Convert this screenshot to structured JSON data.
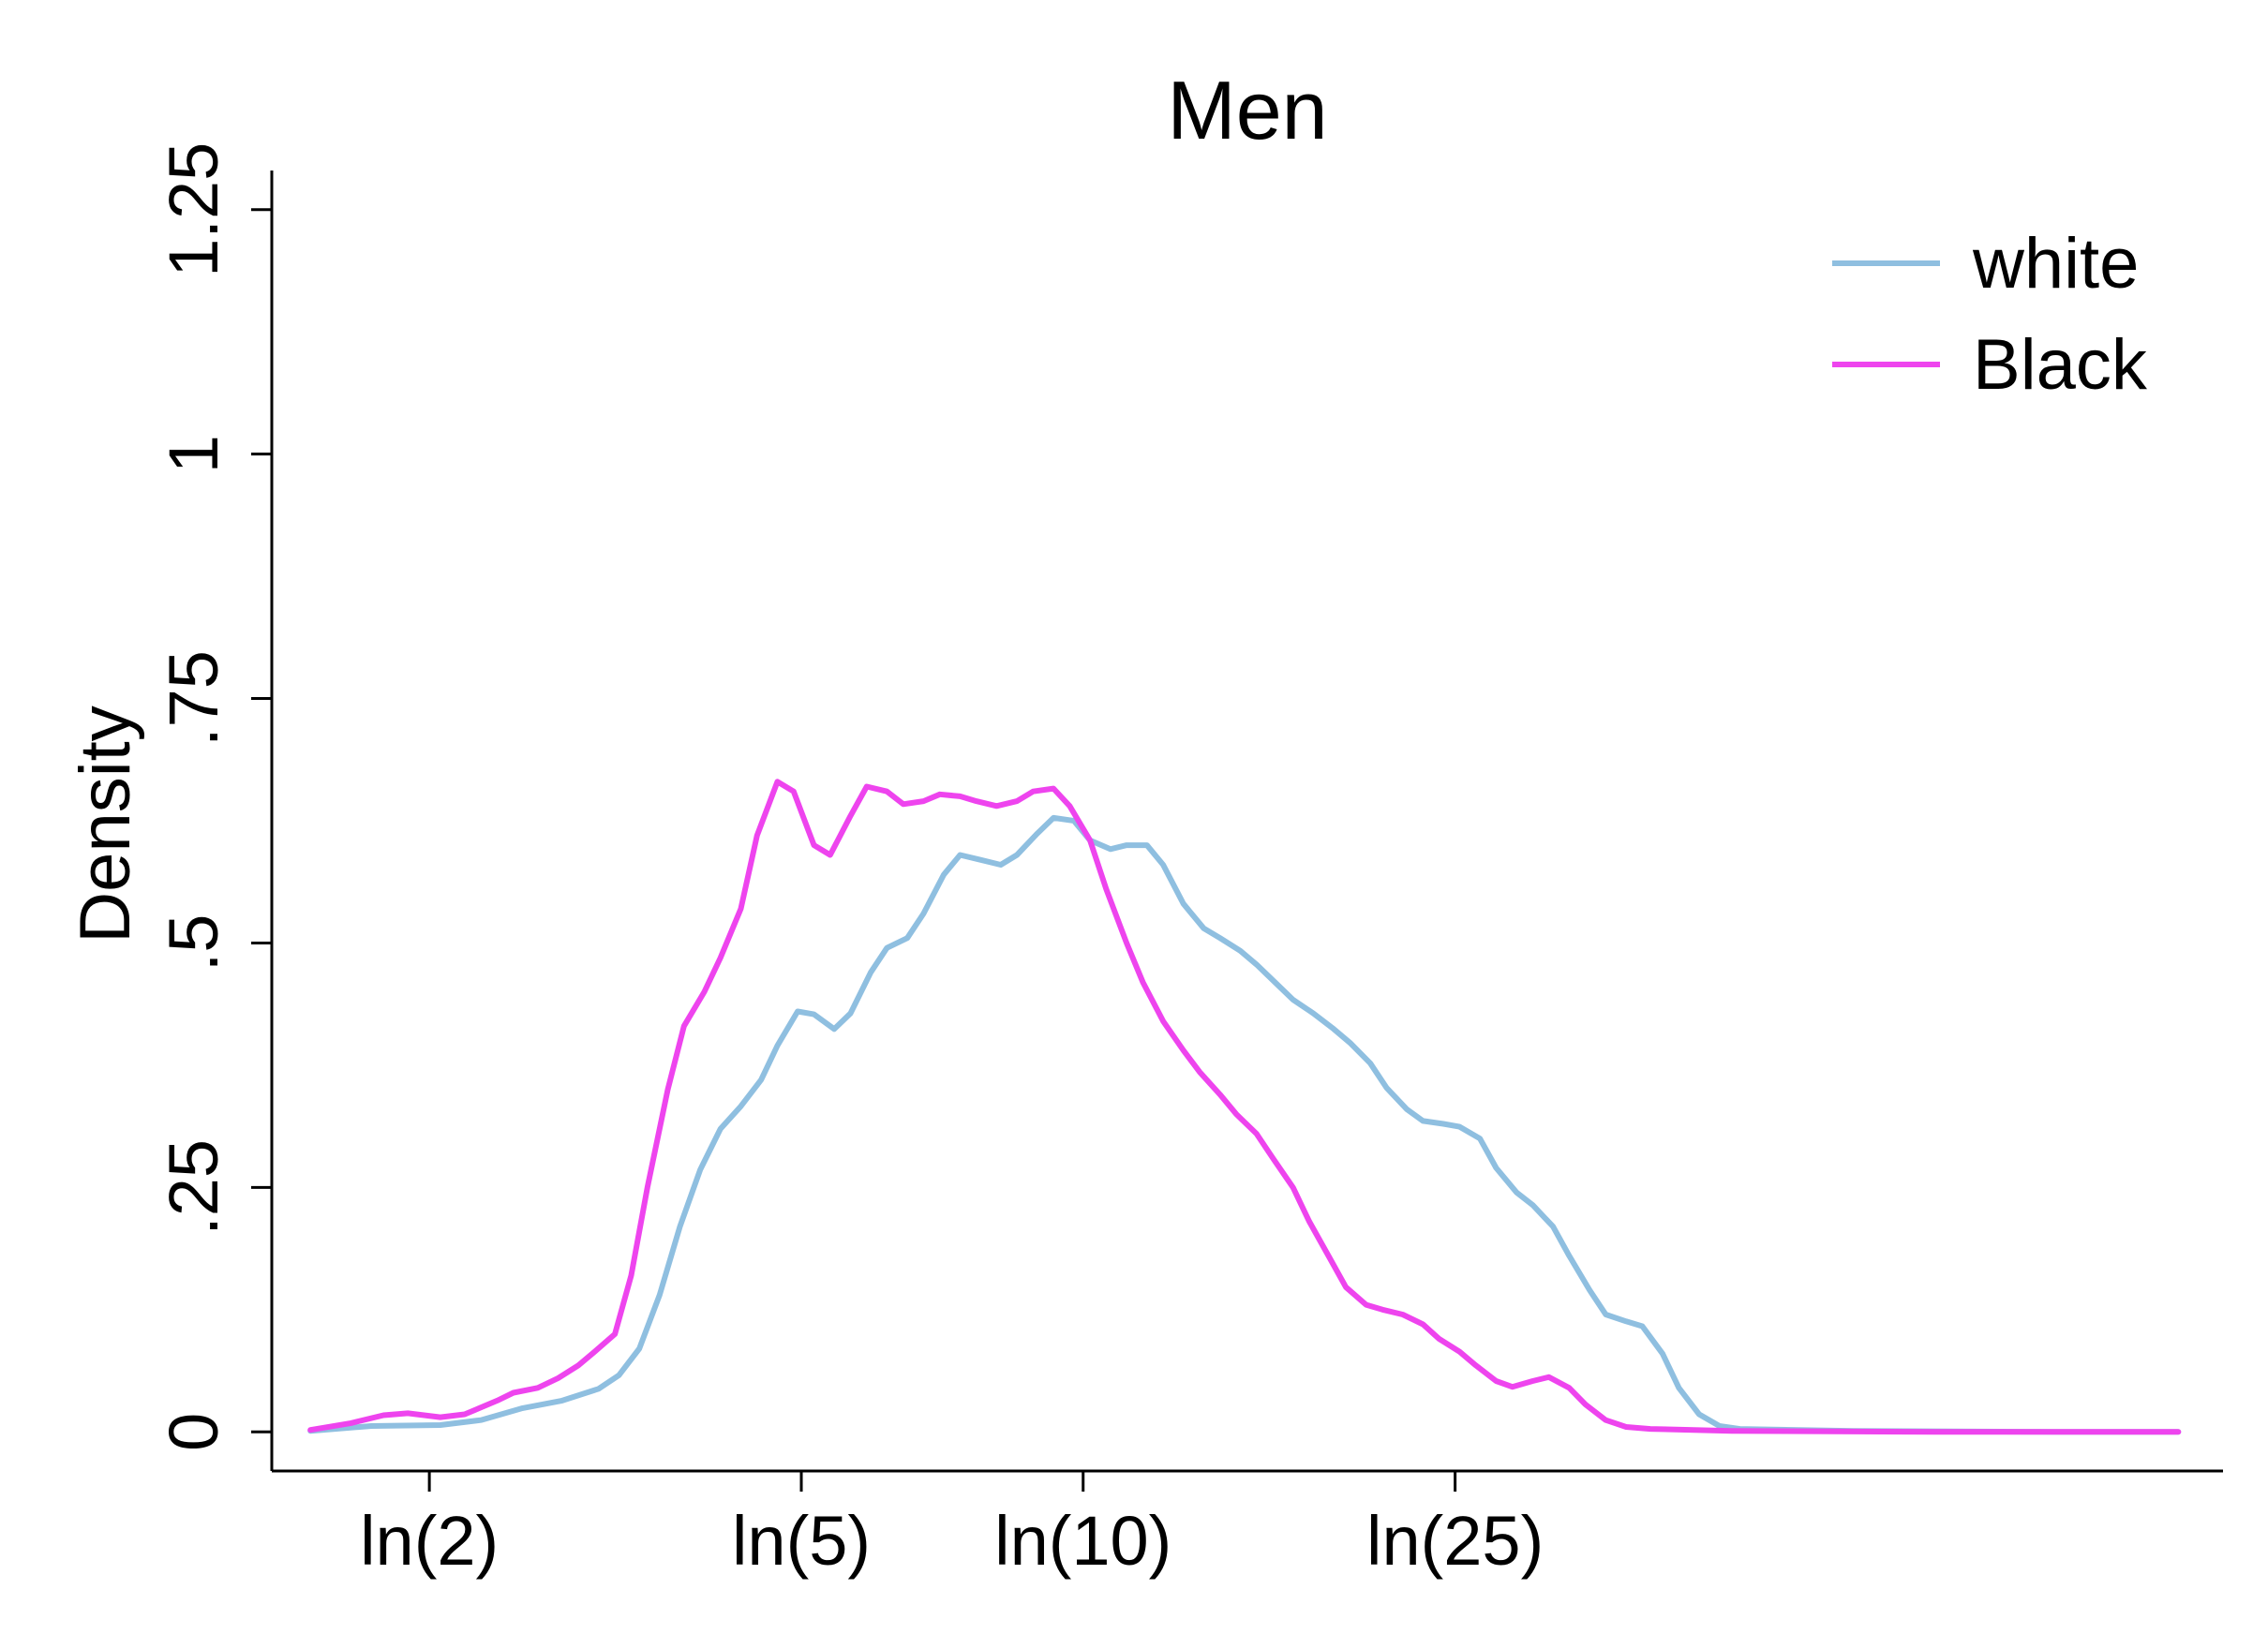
{
  "chart_data": {
    "type": "line",
    "title": "Men",
    "xlabel": "",
    "ylabel": "Density",
    "x_scale": "log",
    "xlim": [
      0.305,
      5.11
    ],
    "ylim": [
      -0.04,
      1.29
    ],
    "x_ticks": [
      {
        "value": 0.693,
        "label": "ln(2)"
      },
      {
        "value": 1.609,
        "label": "ln(5)"
      },
      {
        "value": 2.303,
        "label": "ln(10)"
      },
      {
        "value": 3.219,
        "label": "ln(25)"
      }
    ],
    "y_ticks": [
      {
        "value": 0,
        "label": "0"
      },
      {
        "value": 0.25,
        "label": ".25"
      },
      {
        "value": 0.5,
        "label": ".5"
      },
      {
        "value": 0.75,
        "label": ".75"
      },
      {
        "value": 1,
        "label": "1"
      },
      {
        "value": 1.25,
        "label": "1.25"
      }
    ],
    "grid": false,
    "legend_position": "top-right",
    "series": [
      {
        "name": "white",
        "color": "#8fbfe0",
        "points": [
          [
            0.4,
            0.001
          ],
          [
            0.55,
            0.006
          ],
          [
            0.72,
            0.007
          ],
          [
            0.82,
            0.012
          ],
          [
            0.92,
            0.024
          ],
          [
            1.02,
            0.032
          ],
          [
            1.11,
            0.044
          ],
          [
            1.16,
            0.058
          ],
          [
            1.21,
            0.085
          ],
          [
            1.26,
            0.14
          ],
          [
            1.31,
            0.21
          ],
          [
            1.36,
            0.268
          ],
          [
            1.41,
            0.31
          ],
          [
            1.46,
            0.333
          ],
          [
            1.51,
            0.36
          ],
          [
            1.55,
            0.395
          ],
          [
            1.6,
            0.43
          ],
          [
            1.64,
            0.427
          ],
          [
            1.69,
            0.412
          ],
          [
            1.73,
            0.428
          ],
          [
            1.78,
            0.47
          ],
          [
            1.82,
            0.495
          ],
          [
            1.87,
            0.505
          ],
          [
            1.91,
            0.53
          ],
          [
            1.96,
            0.57
          ],
          [
            2.0,
            0.59
          ],
          [
            2.05,
            0.585
          ],
          [
            2.1,
            0.58
          ],
          [
            2.14,
            0.59
          ],
          [
            2.19,
            0.612
          ],
          [
            2.23,
            0.628
          ],
          [
            2.28,
            0.625
          ],
          [
            2.32,
            0.605
          ],
          [
            2.37,
            0.596
          ],
          [
            2.41,
            0.6
          ],
          [
            2.46,
            0.6
          ],
          [
            2.5,
            0.58
          ],
          [
            2.55,
            0.54
          ],
          [
            2.6,
            0.515
          ],
          [
            2.64,
            0.505
          ],
          [
            2.69,
            0.492
          ],
          [
            2.73,
            0.478
          ],
          [
            2.78,
            0.458
          ],
          [
            2.82,
            0.442
          ],
          [
            2.87,
            0.428
          ],
          [
            2.92,
            0.412
          ],
          [
            2.96,
            0.398
          ],
          [
            3.01,
            0.377
          ],
          [
            3.05,
            0.352
          ],
          [
            3.1,
            0.33
          ],
          [
            3.14,
            0.318
          ],
          [
            3.19,
            0.315
          ],
          [
            3.23,
            0.312
          ],
          [
            3.28,
            0.3
          ],
          [
            3.32,
            0.27
          ],
          [
            3.37,
            0.245
          ],
          [
            3.41,
            0.232
          ],
          [
            3.46,
            0.21
          ],
          [
            3.5,
            0.18
          ],
          [
            3.55,
            0.145
          ],
          [
            3.59,
            0.12
          ],
          [
            3.64,
            0.113
          ],
          [
            3.68,
            0.108
          ],
          [
            3.73,
            0.08
          ],
          [
            3.77,
            0.045
          ],
          [
            3.82,
            0.018
          ],
          [
            3.87,
            0.006
          ],
          [
            3.92,
            0.003
          ],
          [
            4.2,
            0.001
          ],
          [
            4.7,
            0.0
          ],
          [
            5.0,
            0.0
          ]
        ]
      },
      {
        "name": "Black",
        "color": "#ee44ee",
        "points": [
          [
            0.4,
            0.002
          ],
          [
            0.5,
            0.009
          ],
          [
            0.58,
            0.017
          ],
          [
            0.64,
            0.019
          ],
          [
            0.72,
            0.015
          ],
          [
            0.78,
            0.018
          ],
          [
            0.86,
            0.032
          ],
          [
            0.9,
            0.04
          ],
          [
            0.96,
            0.045
          ],
          [
            1.01,
            0.055
          ],
          [
            1.06,
            0.068
          ],
          [
            1.1,
            0.082
          ],
          [
            1.15,
            0.1
          ],
          [
            1.19,
            0.16
          ],
          [
            1.23,
            0.25
          ],
          [
            1.28,
            0.35
          ],
          [
            1.32,
            0.415
          ],
          [
            1.37,
            0.45
          ],
          [
            1.41,
            0.485
          ],
          [
            1.46,
            0.535
          ],
          [
            1.5,
            0.61
          ],
          [
            1.55,
            0.665
          ],
          [
            1.59,
            0.655
          ],
          [
            1.64,
            0.6
          ],
          [
            1.68,
            0.59
          ],
          [
            1.73,
            0.63
          ],
          [
            1.77,
            0.66
          ],
          [
            1.82,
            0.655
          ],
          [
            1.86,
            0.642
          ],
          [
            1.91,
            0.645
          ],
          [
            1.95,
            0.652
          ],
          [
            2.0,
            0.65
          ],
          [
            2.04,
            0.645
          ],
          [
            2.09,
            0.64
          ],
          [
            2.14,
            0.645
          ],
          [
            2.18,
            0.655
          ],
          [
            2.23,
            0.658
          ],
          [
            2.27,
            0.64
          ],
          [
            2.32,
            0.605
          ],
          [
            2.36,
            0.555
          ],
          [
            2.41,
            0.5
          ],
          [
            2.45,
            0.46
          ],
          [
            2.5,
            0.42
          ],
          [
            2.55,
            0.39
          ],
          [
            2.59,
            0.368
          ],
          [
            2.64,
            0.345
          ],
          [
            2.68,
            0.325
          ],
          [
            2.73,
            0.305
          ],
          [
            2.77,
            0.28
          ],
          [
            2.82,
            0.25
          ],
          [
            2.86,
            0.215
          ],
          [
            2.91,
            0.178
          ],
          [
            2.95,
            0.148
          ],
          [
            3.0,
            0.13
          ],
          [
            3.04,
            0.125
          ],
          [
            3.09,
            0.12
          ],
          [
            3.14,
            0.11
          ],
          [
            3.18,
            0.095
          ],
          [
            3.23,
            0.082
          ],
          [
            3.27,
            0.068
          ],
          [
            3.32,
            0.052
          ],
          [
            3.36,
            0.046
          ],
          [
            3.41,
            0.052
          ],
          [
            3.45,
            0.056
          ],
          [
            3.5,
            0.045
          ],
          [
            3.54,
            0.028
          ],
          [
            3.59,
            0.012
          ],
          [
            3.64,
            0.005
          ],
          [
            3.7,
            0.003
          ],
          [
            3.9,
            0.001
          ],
          [
            4.4,
            0.0
          ],
          [
            5.0,
            0.0
          ]
        ]
      }
    ]
  }
}
